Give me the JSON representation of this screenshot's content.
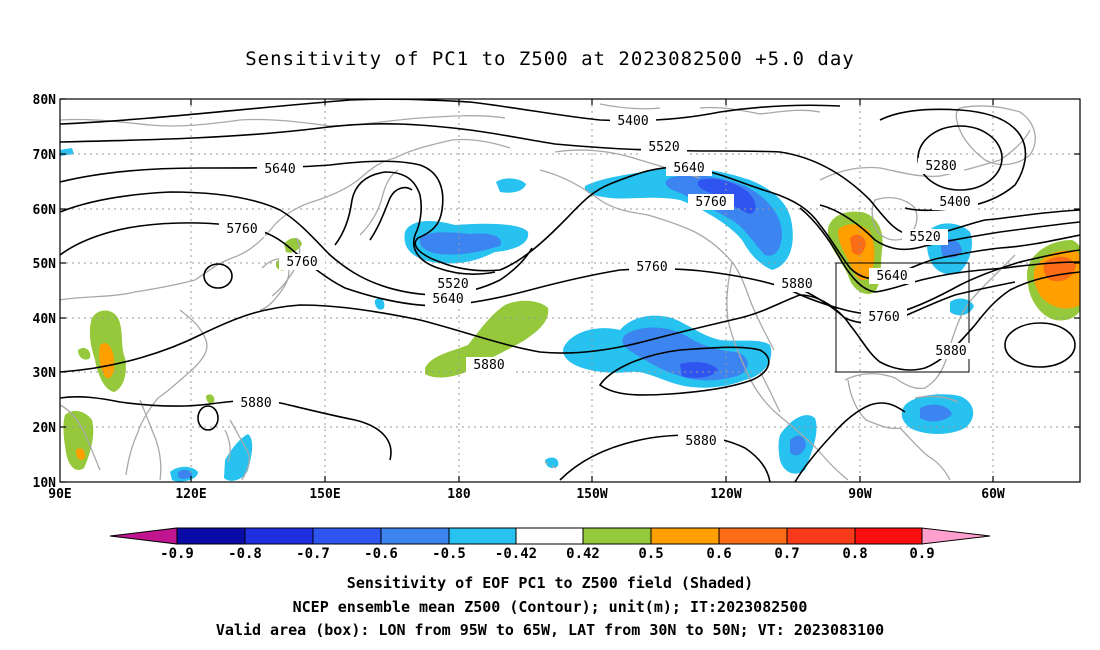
{
  "title": "Sensitivity of PC1 to Z500 at 2023082500 +5.0 day",
  "lat_labels": [
    "80N",
    "70N",
    "60N",
    "50N",
    "40N",
    "30N",
    "20N",
    "10N"
  ],
  "lon_labels": [
    "90E",
    "120E",
    "150E",
    "180",
    "150W",
    "120W",
    "90W",
    "60W"
  ],
  "contour_labels": {
    "c5400a": "5400",
    "c5520a": "5520",
    "c5640a": "5640",
    "c5640b": "5640",
    "c5760a": "5760",
    "c5280": "5280",
    "c5400b": "5400",
    "c5760b": "5760",
    "c5520b": "5520",
    "c5520c": "5520",
    "c5640c": "5640",
    "c5760c": "5760",
    "c5880a": "5880",
    "c5640d": "5640",
    "c5760d": "5760",
    "c5880b": "5880",
    "c5880c": "5880",
    "c5880d": "5880",
    "c5880e": "5880"
  },
  "colorbar": {
    "labels": [
      "-0.9",
      "-0.8",
      "-0.7",
      "-0.6",
      "-0.5",
      "-0.42",
      "0.42",
      "0.5",
      "0.6",
      "0.7",
      "0.8",
      "0.9"
    ],
    "colors": {
      "below_min": "#c0158e",
      "b1": "#0a0aa8",
      "b2": "#1e2ee0",
      "b3": "#2e55f0",
      "b4": "#3c84ef",
      "b5": "#27c2f0",
      "neutral": "#ffffff",
      "p1": "#95c83a",
      "p2": "#ffa000",
      "p3": "#fb6c16",
      "p4": "#fb3a19",
      "p5": "#fb0e10",
      "above_max": "#ff9fce"
    }
  },
  "caption": {
    "line1": "Sensitivity of EOF PC1 to Z500 field (Shaded)",
    "line2": "NCEP ensemble mean Z500 (Contour); unit(m); IT:2023082500",
    "line3": "Valid area (box): LON from 95W to 65W, LAT from 30N to 50N; VT: 2023083100"
  },
  "valid_box": {
    "lon_from": "95W",
    "lon_to": "65W",
    "lat_from": "30N",
    "lat_to": "50N"
  }
}
